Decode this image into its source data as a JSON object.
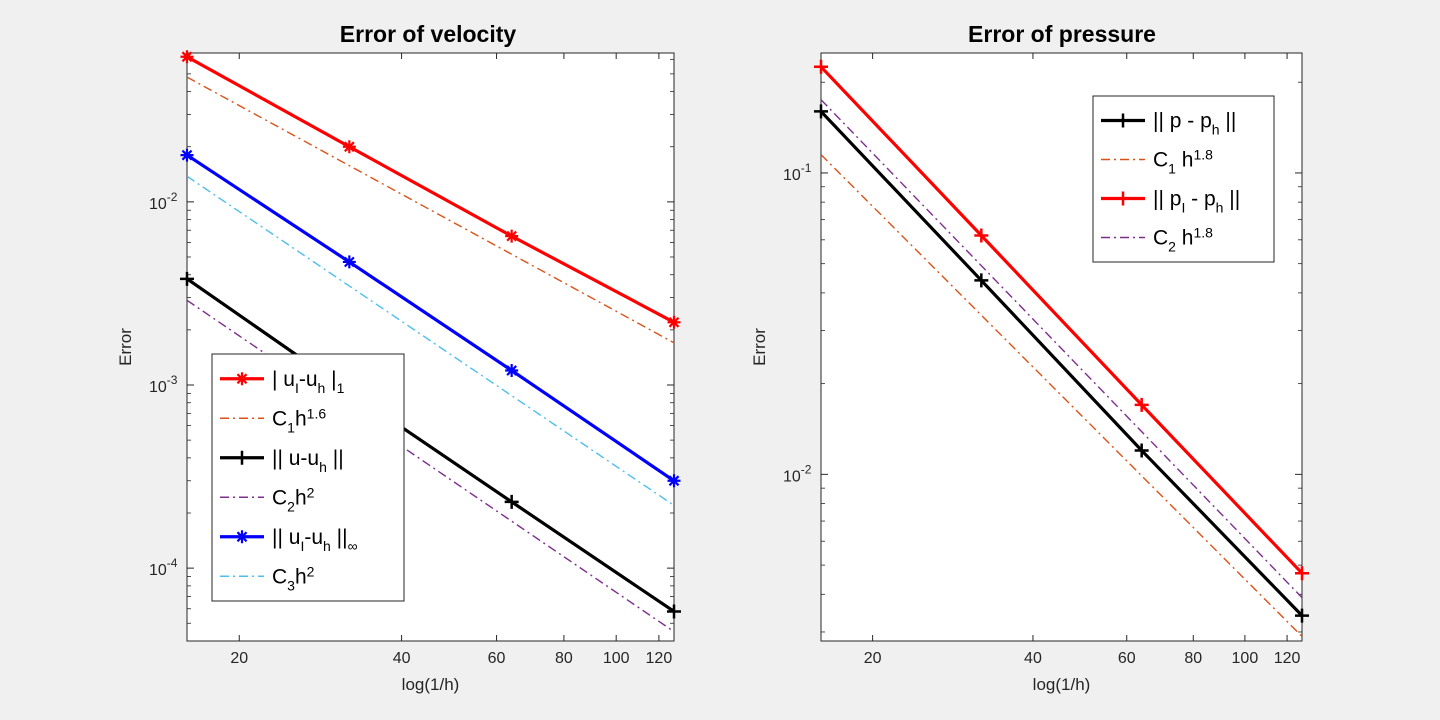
{
  "chart_data": [
    {
      "type": "line",
      "title": "Error of velocity",
      "xlabel": "log(1/h)",
      "ylabel": "Error",
      "xscale": "log",
      "yscale": "log",
      "xlim": [
        16,
        128
      ],
      "ylim": [
        4e-05,
        0.065
      ],
      "xticks": [
        20,
        40,
        60,
        80,
        100,
        120
      ],
      "xtick_labels": [
        "20",
        "40",
        "60",
        "80",
        "100",
        "120"
      ],
      "yticks": [
        0.0001,
        0.001,
        0.01
      ],
      "ytick_labels": [
        {
          "base": "10",
          "exp": "-4"
        },
        {
          "base": "10",
          "exp": "-3"
        },
        {
          "base": "10",
          "exp": "-2"
        }
      ],
      "grid": false,
      "legend_position": "bottom-left",
      "series": [
        {
          "legend": {
            "segments": [
              {
                "t": "| u"
              },
              {
                "t": "I",
                "sub": true
              },
              {
                "t": "-u"
              },
              {
                "t": "h",
                "sub": true
              },
              {
                "t": " |"
              },
              {
                "t": "1",
                "sub": true
              }
            ]
          },
          "color": "#ff0000",
          "style": "solid",
          "marker": "asterisk",
          "x": [
            16,
            32,
            64,
            128
          ],
          "y": [
            0.062,
            0.02,
            0.0065,
            0.0022
          ]
        },
        {
          "legend": {
            "segments": [
              {
                "t": "C"
              },
              {
                "t": "1",
                "sub": true
              },
              {
                "t": "h"
              },
              {
                "t": "1.6",
                "sup": true
              }
            ]
          },
          "color": "#d95319",
          "style": "dashdot",
          "marker": "none",
          "x": [
            16,
            128
          ],
          "y": [
            0.048,
            0.0017
          ]
        },
        {
          "legend": {
            "segments": [
              {
                "t": "|| u-u"
              },
              {
                "t": "h",
                "sub": true
              },
              {
                "t": " ||"
              }
            ]
          },
          "color": "#000000",
          "style": "solid",
          "marker": "plus",
          "x": [
            16,
            32,
            64,
            128
          ],
          "y": [
            0.0038,
            0.00092,
            0.00023,
            5.8e-05
          ]
        },
        {
          "legend": {
            "segments": [
              {
                "t": "C"
              },
              {
                "t": "2",
                "sub": true
              },
              {
                "t": "h"
              },
              {
                "t": "2",
                "sup": true
              }
            ]
          },
          "color": "#7e2f8e",
          "style": "dashdot",
          "marker": "none",
          "x": [
            16,
            128
          ],
          "y": [
            0.0029,
            4.5e-05
          ]
        },
        {
          "legend": {
            "segments": [
              {
                "t": "|| u"
              },
              {
                "t": "I",
                "sub": true
              },
              {
                "t": "-u"
              },
              {
                "t": "h",
                "sub": true
              },
              {
                "t": " ||"
              },
              {
                "t": "∞",
                "sub": true
              }
            ]
          },
          "color": "#0000ff",
          "style": "solid",
          "marker": "asterisk",
          "x": [
            16,
            32,
            64,
            128
          ],
          "y": [
            0.018,
            0.0047,
            0.0012,
            0.0003
          ]
        },
        {
          "legend": {
            "segments": [
              {
                "t": "C"
              },
              {
                "t": "3",
                "sub": true
              },
              {
                "t": "h"
              },
              {
                "t": "2",
                "sup": true
              }
            ]
          },
          "color": "#4dbeee",
          "style": "dashdot",
          "marker": "none",
          "x": [
            16,
            128
          ],
          "y": [
            0.0138,
            0.00022
          ]
        }
      ]
    },
    {
      "type": "line",
      "title": "Error of pressure",
      "xlabel": "log(1/h)",
      "ylabel": "Error",
      "xscale": "log",
      "yscale": "log",
      "xlim": [
        16,
        128
      ],
      "ylim": [
        0.0028,
        0.25
      ],
      "xticks": [
        20,
        40,
        60,
        80,
        100,
        120
      ],
      "xtick_labels": [
        "20",
        "40",
        "60",
        "80",
        "100",
        "120"
      ],
      "yticks": [
        0.01,
        0.1
      ],
      "ytick_labels": [
        {
          "base": "10",
          "exp": "-2"
        },
        {
          "base": "10",
          "exp": "-1"
        }
      ],
      "grid": false,
      "legend_position": "top-right",
      "series": [
        {
          "legend": {
            "segments": [
              {
                "t": "|| p - p"
              },
              {
                "t": "h",
                "sub": true
              },
              {
                "t": " ||"
              }
            ]
          },
          "color": "#000000",
          "style": "solid",
          "marker": "plus",
          "x": [
            16,
            32,
            64,
            128
          ],
          "y": [
            0.16,
            0.044,
            0.012,
            0.0034
          ]
        },
        {
          "legend": {
            "segments": [
              {
                "t": "C"
              },
              {
                "t": "1",
                "sub": true
              },
              {
                "t": " h"
              },
              {
                "t": "1.8",
                "sup": true
              }
            ]
          },
          "color": "#d95319",
          "style": "dashdot",
          "marker": "none",
          "x": [
            16,
            128
          ],
          "y": [
            0.115,
            0.0029
          ]
        },
        {
          "legend": {
            "segments": [
              {
                "t": "|| p"
              },
              {
                "t": "I",
                "sub": true
              },
              {
                "t": " - p"
              },
              {
                "t": "h",
                "sub": true
              },
              {
                "t": " ||"
              }
            ]
          },
          "color": "#ff0000",
          "style": "solid",
          "marker": "plus",
          "x": [
            16,
            32,
            64,
            128
          ],
          "y": [
            0.225,
            0.062,
            0.017,
            0.0047
          ]
        },
        {
          "legend": {
            "segments": [
              {
                "t": "C"
              },
              {
                "t": "2",
                "sub": true
              },
              {
                "t": " h"
              },
              {
                "t": "1.8",
                "sup": true
              }
            ]
          },
          "color": "#7e2f8e",
          "style": "dashdot",
          "marker": "none",
          "x": [
            16,
            128
          ],
          "y": [
            0.175,
            0.0039
          ]
        }
      ]
    }
  ]
}
